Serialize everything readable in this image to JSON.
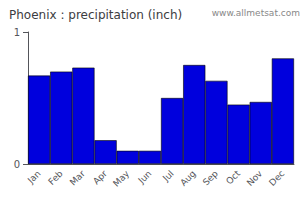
{
  "chart_data": {
    "type": "bar",
    "title": "Phoenix : precipitation (inch)",
    "categories": [
      "Jan",
      "Feb",
      "Mar",
      "Apr",
      "May",
      "Jun",
      "Jul",
      "Aug",
      "Sep",
      "Oct",
      "Nov",
      "Dec"
    ],
    "values": [
      0.67,
      0.7,
      0.73,
      0.18,
      0.1,
      0.1,
      0.5,
      0.75,
      0.63,
      0.45,
      0.47,
      0.8
    ],
    "color": "#0000dd",
    "ylim": [
      0,
      1.0
    ],
    "yticks": [
      0,
      1
    ],
    "grid": false,
    "annotation": "www.allmetsat.com"
  }
}
